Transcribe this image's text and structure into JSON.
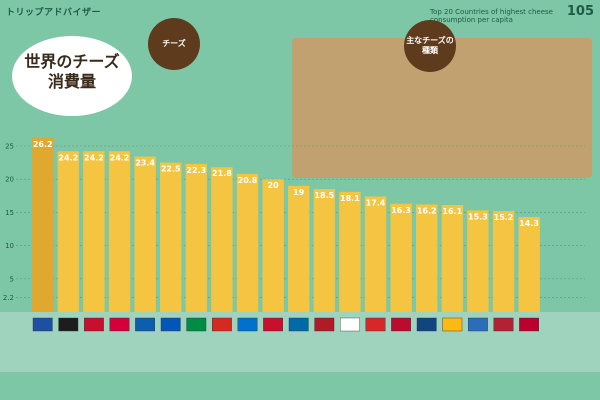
{
  "header": {
    "brand": "トリップアドバイザー",
    "subtitle_en": "Top 20 Countries of highest cheese consumption per capita",
    "page_number": "105"
  },
  "circles": {
    "cheese": "チーズ",
    "types": "主なチーズの種類"
  },
  "main_title": "世界のチーズ消費量",
  "chart_data": {
    "type": "bar",
    "title": "世界のチーズ消費量",
    "ylabel": "",
    "ylim": [
      0,
      27
    ],
    "yticks": [
      2.2,
      5,
      10,
      15,
      20,
      25
    ],
    "values": [
      26.2,
      24.2,
      24.2,
      24.2,
      23.4,
      22.5,
      22.3,
      21.8,
      20.8,
      20.0,
      19.0,
      18.5,
      18.1,
      17.4,
      16.3,
      16.2,
      16.1,
      15.3,
      15.2,
      14.3
    ],
    "bar_color": "#f5c542",
    "first_bar_color": "#e0a82e"
  },
  "flag_colors": [
    "#1f4fa0",
    "#1d1d1d",
    "#c8102e",
    "#d4003c",
    "#0d5eaf",
    "#0057b8",
    "#008c45",
    "#d52b1e",
    "#0072ce",
    "#c8102e",
    "#006aa7",
    "#ae1c28",
    "#ffffff",
    "#d72828",
    "#ba0c2f",
    "#11457e",
    "#fdb913",
    "#2a6ebb",
    "#b22234",
    "#bc002d"
  ]
}
